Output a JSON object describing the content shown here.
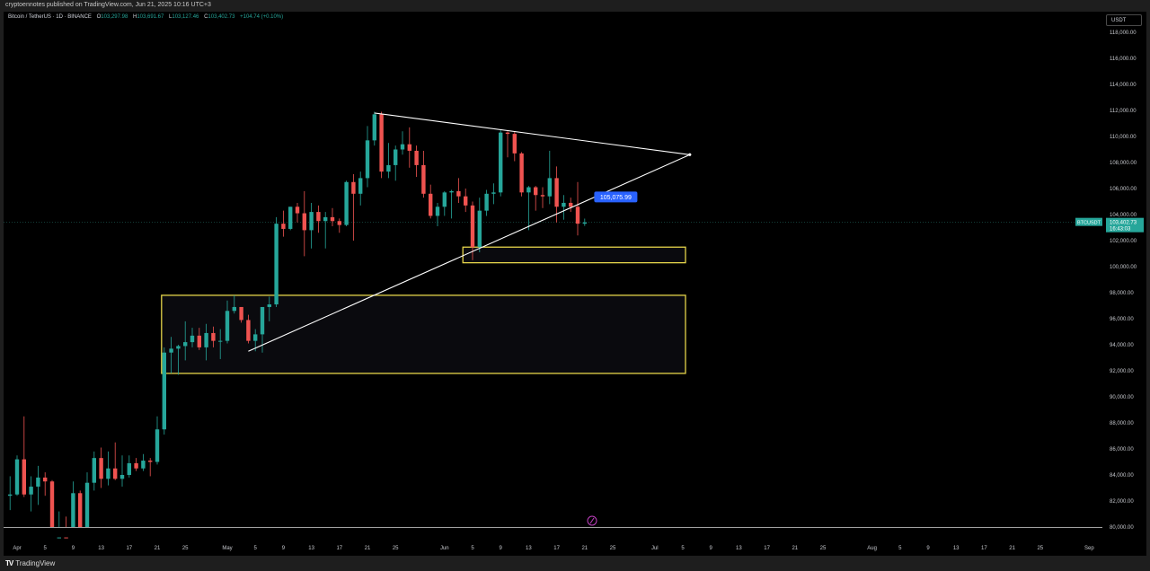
{
  "header": {
    "published_line": "cryptoennotes published on TradingView.com, Jun 21, 2025 10:16 UTC+3"
  },
  "legend": {
    "symbol": "Bitcoin / TetherUS · 1D · BINANCE",
    "open_label": "O",
    "open": "103,297.98",
    "high_label": "H",
    "high": "103,691.67",
    "low_label": "L",
    "low": "103,127.46",
    "close_label": "C",
    "close": "103,402.73",
    "change": "+104.74 (+0.10%)"
  },
  "currency_button": "USDT",
  "footer": {
    "brand_mark": "TV",
    "brand": "TradingView"
  },
  "chart_data": {
    "type": "candlestick",
    "symbol": "BTCUSDT",
    "interval": "1D",
    "exchange": "BINANCE",
    "ylim": [
      80000,
      118500
    ],
    "y_ticks": [
      "118,000.00",
      "116,000.00",
      "114,000.00",
      "112,000.00",
      "110,000.00",
      "108,000.00",
      "106,000.00",
      "104,000.00",
      "102,000.00",
      "100,000.00",
      "98,000.00",
      "96,000.00",
      "94,000.00",
      "92,000.00",
      "90,000.00",
      "88,000.00",
      "86,000.00",
      "84,000.00",
      "82,000.00",
      "80,000.00"
    ],
    "y_tick_values": [
      118000,
      116000,
      114000,
      112000,
      110000,
      108000,
      106000,
      104000,
      102000,
      100000,
      98000,
      96000,
      94000,
      92000,
      90000,
      88000,
      86000,
      84000,
      82000,
      80000
    ],
    "x_ticks": [
      {
        "label": "Apr",
        "date": "2025-04-01"
      },
      {
        "label": "5",
        "date": "2025-04-05"
      },
      {
        "label": "9",
        "date": "2025-04-09"
      },
      {
        "label": "13",
        "date": "2025-04-13"
      },
      {
        "label": "17",
        "date": "2025-04-17"
      },
      {
        "label": "21",
        "date": "2025-04-21"
      },
      {
        "label": "25",
        "date": "2025-04-25"
      },
      {
        "label": "May",
        "date": "2025-05-01"
      },
      {
        "label": "5",
        "date": "2025-05-05"
      },
      {
        "label": "9",
        "date": "2025-05-09"
      },
      {
        "label": "13",
        "date": "2025-05-13"
      },
      {
        "label": "17",
        "date": "2025-05-17"
      },
      {
        "label": "21",
        "date": "2025-05-21"
      },
      {
        "label": "25",
        "date": "2025-05-25"
      },
      {
        "label": "Jun",
        "date": "2025-06-01"
      },
      {
        "label": "5",
        "date": "2025-06-05"
      },
      {
        "label": "9",
        "date": "2025-06-09"
      },
      {
        "label": "13",
        "date": "2025-06-13"
      },
      {
        "label": "17",
        "date": "2025-06-17"
      },
      {
        "label": "21",
        "date": "2025-06-21"
      },
      {
        "label": "25",
        "date": "2025-06-25"
      },
      {
        "label": "Jul",
        "date": "2025-07-01"
      },
      {
        "label": "5",
        "date": "2025-07-05"
      },
      {
        "label": "9",
        "date": "2025-07-09"
      },
      {
        "label": "13",
        "date": "2025-07-13"
      },
      {
        "label": "17",
        "date": "2025-07-17"
      },
      {
        "label": "21",
        "date": "2025-07-21"
      },
      {
        "label": "25",
        "date": "2025-07-25"
      },
      {
        "label": "Aug",
        "date": "2025-08-01"
      },
      {
        "label": "5",
        "date": "2025-08-05"
      },
      {
        "label": "9",
        "date": "2025-08-09"
      },
      {
        "label": "13",
        "date": "2025-08-13"
      },
      {
        "label": "17",
        "date": "2025-08-17"
      },
      {
        "label": "21",
        "date": "2025-08-21"
      },
      {
        "label": "25",
        "date": "2025-08-25"
      },
      {
        "label": "Sep",
        "date": "2025-09-01"
      }
    ],
    "candles": [
      {
        "d": "2025-03-31",
        "o": 82400,
        "h": 83900,
        "l": 81300,
        "c": 82500
      },
      {
        "d": "2025-04-01",
        "o": 82500,
        "h": 85500,
        "l": 82400,
        "c": 85200
      },
      {
        "d": "2025-04-02",
        "o": 85200,
        "h": 88500,
        "l": 82300,
        "c": 82500
      },
      {
        "d": "2025-04-03",
        "o": 82500,
        "h": 83900,
        "l": 81200,
        "c": 83100
      },
      {
        "d": "2025-04-04",
        "o": 83100,
        "h": 84700,
        "l": 81700,
        "c": 83800
      },
      {
        "d": "2025-04-05",
        "o": 83800,
        "h": 84200,
        "l": 82400,
        "c": 83500
      },
      {
        "d": "2025-04-06",
        "o": 83500,
        "h": 83600,
        "l": 77200,
        "c": 78400
      },
      {
        "d": "2025-04-07",
        "o": 78400,
        "h": 81200,
        "l": 74500,
        "c": 79200
      },
      {
        "d": "2025-04-08",
        "o": 79200,
        "h": 80800,
        "l": 76200,
        "c": 76300
      },
      {
        "d": "2025-04-09",
        "o": 76300,
        "h": 83500,
        "l": 74600,
        "c": 82600
      },
      {
        "d": "2025-04-10",
        "o": 82600,
        "h": 82800,
        "l": 78300,
        "c": 79600
      },
      {
        "d": "2025-04-11",
        "o": 79600,
        "h": 84200,
        "l": 78900,
        "c": 83400
      },
      {
        "d": "2025-04-12",
        "o": 83400,
        "h": 85800,
        "l": 82800,
        "c": 85300
      },
      {
        "d": "2025-04-13",
        "o": 85300,
        "h": 86100,
        "l": 83000,
        "c": 83700
      },
      {
        "d": "2025-04-14",
        "o": 83700,
        "h": 85800,
        "l": 83200,
        "c": 84500
      },
      {
        "d": "2025-04-15",
        "o": 84500,
        "h": 86500,
        "l": 83600,
        "c": 83700
      },
      {
        "d": "2025-04-16",
        "o": 83700,
        "h": 85500,
        "l": 83100,
        "c": 84000
      },
      {
        "d": "2025-04-17",
        "o": 84000,
        "h": 85500,
        "l": 83800,
        "c": 84900
      },
      {
        "d": "2025-04-18",
        "o": 84900,
        "h": 85300,
        "l": 84300,
        "c": 84500
      },
      {
        "d": "2025-04-19",
        "o": 84500,
        "h": 85600,
        "l": 84300,
        "c": 85100
      },
      {
        "d": "2025-04-20",
        "o": 85100,
        "h": 85300,
        "l": 83900,
        "c": 85000
      },
      {
        "d": "2025-04-21",
        "o": 85000,
        "h": 88500,
        "l": 84800,
        "c": 87500
      },
      {
        "d": "2025-04-22",
        "o": 87500,
        "h": 93800,
        "l": 87100,
        "c": 93400
      },
      {
        "d": "2025-04-23",
        "o": 93400,
        "h": 94600,
        "l": 91800,
        "c": 93700
      },
      {
        "d": "2025-04-24",
        "o": 93700,
        "h": 94000,
        "l": 91700,
        "c": 93900
      },
      {
        "d": "2025-04-25",
        "o": 93900,
        "h": 95800,
        "l": 92800,
        "c": 94200
      },
      {
        "d": "2025-04-26",
        "o": 94200,
        "h": 95300,
        "l": 93800,
        "c": 94700
      },
      {
        "d": "2025-04-27",
        "o": 94700,
        "h": 95300,
        "l": 93600,
        "c": 93800
      },
      {
        "d": "2025-04-28",
        "o": 93800,
        "h": 95600,
        "l": 92800,
        "c": 94900
      },
      {
        "d": "2025-04-29",
        "o": 94900,
        "h": 95400,
        "l": 93800,
        "c": 94300
      },
      {
        "d": "2025-04-30",
        "o": 94300,
        "h": 95200,
        "l": 92900,
        "c": 94300
      },
      {
        "d": "2025-05-01",
        "o": 94300,
        "h": 97400,
        "l": 94100,
        "c": 96600
      },
      {
        "d": "2025-05-02",
        "o": 96600,
        "h": 97800,
        "l": 96400,
        "c": 96900
      },
      {
        "d": "2025-05-03",
        "o": 96900,
        "h": 96800,
        "l": 95700,
        "c": 95900
      },
      {
        "d": "2025-05-04",
        "o": 95900,
        "h": 96300,
        "l": 94100,
        "c": 94300
      },
      {
        "d": "2025-05-05",
        "o": 94300,
        "h": 95200,
        "l": 93500,
        "c": 94800
      },
      {
        "d": "2025-05-06",
        "o": 94800,
        "h": 96900,
        "l": 93400,
        "c": 96900
      },
      {
        "d": "2025-05-07",
        "o": 96900,
        "h": 97700,
        "l": 95800,
        "c": 97100
      },
      {
        "d": "2025-05-08",
        "o": 97100,
        "h": 103800,
        "l": 96900,
        "c": 103300
      },
      {
        "d": "2025-05-09",
        "o": 103300,
        "h": 104300,
        "l": 102300,
        "c": 102900
      },
      {
        "d": "2025-05-10",
        "o": 102900,
        "h": 104600,
        "l": 102800,
        "c": 104600
      },
      {
        "d": "2025-05-11",
        "o": 104600,
        "h": 104900,
        "l": 103400,
        "c": 104100
      },
      {
        "d": "2025-05-12",
        "o": 104100,
        "h": 105800,
        "l": 100800,
        "c": 102800
      },
      {
        "d": "2025-05-13",
        "o": 102800,
        "h": 104900,
        "l": 101400,
        "c": 104200
      },
      {
        "d": "2025-05-14",
        "o": 104200,
        "h": 104700,
        "l": 102600,
        "c": 103500
      },
      {
        "d": "2025-05-15",
        "o": 103500,
        "h": 104200,
        "l": 101400,
        "c": 103800
      },
      {
        "d": "2025-05-16",
        "o": 103800,
        "h": 104500,
        "l": 103100,
        "c": 103500
      },
      {
        "d": "2025-05-17",
        "o": 103500,
        "h": 103700,
        "l": 102600,
        "c": 103200
      },
      {
        "d": "2025-05-18",
        "o": 103200,
        "h": 106600,
        "l": 103100,
        "c": 106500
      },
      {
        "d": "2025-05-19",
        "o": 106500,
        "h": 107100,
        "l": 102000,
        "c": 105600
      },
      {
        "d": "2025-05-20",
        "o": 105600,
        "h": 107300,
        "l": 104700,
        "c": 106800
      },
      {
        "d": "2025-05-21",
        "o": 106800,
        "h": 110800,
        "l": 106100,
        "c": 109700
      },
      {
        "d": "2025-05-22",
        "o": 109700,
        "h": 111900,
        "l": 109300,
        "c": 111700
      },
      {
        "d": "2025-05-23",
        "o": 111700,
        "h": 111900,
        "l": 106800,
        "c": 107300
      },
      {
        "d": "2025-05-24",
        "o": 107300,
        "h": 109500,
        "l": 106800,
        "c": 107800
      },
      {
        "d": "2025-05-25",
        "o": 107800,
        "h": 109300,
        "l": 106600,
        "c": 109000
      },
      {
        "d": "2025-05-26",
        "o": 109000,
        "h": 110400,
        "l": 108600,
        "c": 109400
      },
      {
        "d": "2025-05-27",
        "o": 109400,
        "h": 110700,
        "l": 107600,
        "c": 108900
      },
      {
        "d": "2025-05-28",
        "o": 108900,
        "h": 109300,
        "l": 106900,
        "c": 107800
      },
      {
        "d": "2025-05-29",
        "o": 107800,
        "h": 108900,
        "l": 105300,
        "c": 105600
      },
      {
        "d": "2025-05-30",
        "o": 105600,
        "h": 106300,
        "l": 103700,
        "c": 103900
      },
      {
        "d": "2025-05-31",
        "o": 103900,
        "h": 104900,
        "l": 103100,
        "c": 104600
      },
      {
        "d": "2025-06-01",
        "o": 104600,
        "h": 105800,
        "l": 103900,
        "c": 105700
      },
      {
        "d": "2025-06-02",
        "o": 105700,
        "h": 105900,
        "l": 103700,
        "c": 105800
      },
      {
        "d": "2025-06-03",
        "o": 105800,
        "h": 106800,
        "l": 104900,
        "c": 105400
      },
      {
        "d": "2025-06-04",
        "o": 105400,
        "h": 106000,
        "l": 104200,
        "c": 104700
      },
      {
        "d": "2025-06-05",
        "o": 104700,
        "h": 105000,
        "l": 100500,
        "c": 101500
      },
      {
        "d": "2025-06-06",
        "o": 101500,
        "h": 105300,
        "l": 101100,
        "c": 104300
      },
      {
        "d": "2025-06-07",
        "o": 104300,
        "h": 105900,
        "l": 103900,
        "c": 105600
      },
      {
        "d": "2025-06-08",
        "o": 105600,
        "h": 106400,
        "l": 104800,
        "c": 105700
      },
      {
        "d": "2025-06-09",
        "o": 105700,
        "h": 110500,
        "l": 105400,
        "c": 110300
      },
      {
        "d": "2025-06-10",
        "o": 110300,
        "h": 110400,
        "l": 108400,
        "c": 110200
      },
      {
        "d": "2025-06-11",
        "o": 110200,
        "h": 110400,
        "l": 108100,
        "c": 108700
      },
      {
        "d": "2025-06-12",
        "o": 108700,
        "h": 108800,
        "l": 105400,
        "c": 105700
      },
      {
        "d": "2025-06-13",
        "o": 105700,
        "h": 106200,
        "l": 102800,
        "c": 106100
      },
      {
        "d": "2025-06-14",
        "o": 106100,
        "h": 106200,
        "l": 104300,
        "c": 105500
      },
      {
        "d": "2025-06-15",
        "o": 105500,
        "h": 106100,
        "l": 104500,
        "c": 105400
      },
      {
        "d": "2025-06-16",
        "o": 105400,
        "h": 108900,
        "l": 104800,
        "c": 106800
      },
      {
        "d": "2025-06-17",
        "o": 106800,
        "h": 107700,
        "l": 103400,
        "c": 104600
      },
      {
        "d": "2025-06-18",
        "o": 104600,
        "h": 105500,
        "l": 103600,
        "c": 104900
      },
      {
        "d": "2025-06-19",
        "o": 104900,
        "h": 105300,
        "l": 104200,
        "c": 104600
      },
      {
        "d": "2025-06-20",
        "o": 104600,
        "h": 106500,
        "l": 102400,
        "c": 103300
      },
      {
        "d": "2025-06-21",
        "o": 103298,
        "h": 103692,
        "l": 103127,
        "c": 103403
      }
    ],
    "drawings": {
      "resistance_line": {
        "from": {
          "d": "2025-05-22",
          "y": 111800
        },
        "to": {
          "d": "2025-07-06",
          "y": 108600
        }
      },
      "support_line": {
        "from": {
          "d": "2025-05-04",
          "y": 93500
        },
        "to": {
          "d": "2025-07-06",
          "y": 108600
        }
      },
      "upper_zone": {
        "from_date": "2025-06-04",
        "to_date": "2025-07-05",
        "y_top": 101500,
        "y_bottom": 100300
      },
      "lower_zone": {
        "from_date": "2025-04-22",
        "to_date": "2025-07-05",
        "y_top": 97800,
        "y_bottom": 91800
      },
      "price_callout": {
        "label": "105,075.99",
        "d": "2025-06-23",
        "y": 105076
      }
    },
    "last_price": {
      "symbol_tag": "BTCUSDT",
      "price": "103,402.73",
      "countdown": "16:43:03",
      "value": 103402.73
    },
    "colors": {
      "up": "#26a69a",
      "down": "#ef5350",
      "zone": "#e5d44a",
      "trend": "#ffffff",
      "callout": "#2962ff",
      "background": "#000000"
    }
  }
}
